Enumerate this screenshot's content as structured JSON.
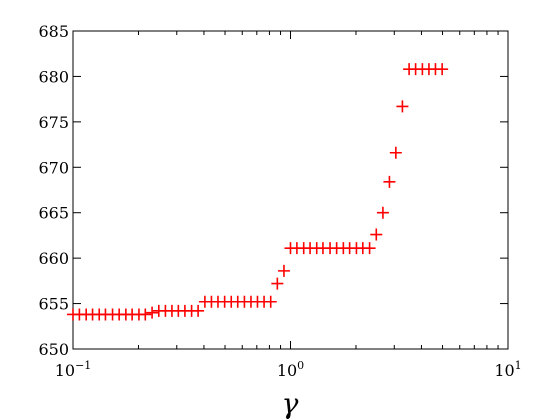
{
  "chart_data": {
    "type": "scatter",
    "title": "",
    "xlabel": "γ",
    "ylabel": "",
    "xscale": "log",
    "xlim": [
      0.1,
      10
    ],
    "ylim": [
      650,
      685
    ],
    "grid": false,
    "marker": "plus",
    "marker_color": "#ff0000",
    "x_ticks": [
      {
        "value": 0.1,
        "base": "10",
        "exp": "−1"
      },
      {
        "value": 1,
        "base": "10",
        "exp": "0"
      },
      {
        "value": 10,
        "base": "10",
        "exp": "1"
      }
    ],
    "y_ticks": [
      650,
      655,
      660,
      665,
      670,
      675,
      680,
      685
    ],
    "points": [
      {
        "x": 0.1,
        "y": 653.8
      },
      {
        "x": 0.107,
        "y": 653.8
      },
      {
        "x": 0.115,
        "y": 653.8
      },
      {
        "x": 0.123,
        "y": 653.8
      },
      {
        "x": 0.132,
        "y": 653.8
      },
      {
        "x": 0.141,
        "y": 653.8
      },
      {
        "x": 0.152,
        "y": 653.8
      },
      {
        "x": 0.163,
        "y": 653.8
      },
      {
        "x": 0.175,
        "y": 653.8
      },
      {
        "x": 0.187,
        "y": 653.8
      },
      {
        "x": 0.201,
        "y": 653.8
      },
      {
        "x": 0.215,
        "y": 653.8
      },
      {
        "x": 0.231,
        "y": 654.0
      },
      {
        "x": 0.248,
        "y": 654.2
      },
      {
        "x": 0.266,
        "y": 654.2
      },
      {
        "x": 0.285,
        "y": 654.2
      },
      {
        "x": 0.305,
        "y": 654.2
      },
      {
        "x": 0.327,
        "y": 654.2
      },
      {
        "x": 0.351,
        "y": 654.2
      },
      {
        "x": 0.376,
        "y": 654.2
      },
      {
        "x": 0.404,
        "y": 655.2
      },
      {
        "x": 0.433,
        "y": 655.2
      },
      {
        "x": 0.464,
        "y": 655.2
      },
      {
        "x": 0.498,
        "y": 655.2
      },
      {
        "x": 0.534,
        "y": 655.2
      },
      {
        "x": 0.572,
        "y": 655.2
      },
      {
        "x": 0.614,
        "y": 655.2
      },
      {
        "x": 0.658,
        "y": 655.2
      },
      {
        "x": 0.705,
        "y": 655.2
      },
      {
        "x": 0.756,
        "y": 655.2
      },
      {
        "x": 0.811,
        "y": 655.2
      },
      {
        "x": 0.87,
        "y": 657.2
      },
      {
        "x": 0.933,
        "y": 658.6
      },
      {
        "x": 1.0,
        "y": 661.1
      },
      {
        "x": 1.07,
        "y": 661.1
      },
      {
        "x": 1.15,
        "y": 661.1
      },
      {
        "x": 1.23,
        "y": 661.1
      },
      {
        "x": 1.32,
        "y": 661.1
      },
      {
        "x": 1.41,
        "y": 661.1
      },
      {
        "x": 1.52,
        "y": 661.1
      },
      {
        "x": 1.63,
        "y": 661.1
      },
      {
        "x": 1.75,
        "y": 661.1
      },
      {
        "x": 1.87,
        "y": 661.1
      },
      {
        "x": 2.01,
        "y": 661.1
      },
      {
        "x": 2.15,
        "y": 661.1
      },
      {
        "x": 2.31,
        "y": 661.1
      },
      {
        "x": 2.48,
        "y": 662.6
      },
      {
        "x": 2.66,
        "y": 665.0
      },
      {
        "x": 2.85,
        "y": 668.4
      },
      {
        "x": 3.05,
        "y": 671.6
      },
      {
        "x": 3.27,
        "y": 676.7
      },
      {
        "x": 3.51,
        "y": 680.8
      },
      {
        "x": 3.76,
        "y": 680.8
      },
      {
        "x": 4.04,
        "y": 680.8
      },
      {
        "x": 4.33,
        "y": 680.8
      },
      {
        "x": 4.64,
        "y": 680.8
      },
      {
        "x": 4.98,
        "y": 680.8
      }
    ]
  }
}
